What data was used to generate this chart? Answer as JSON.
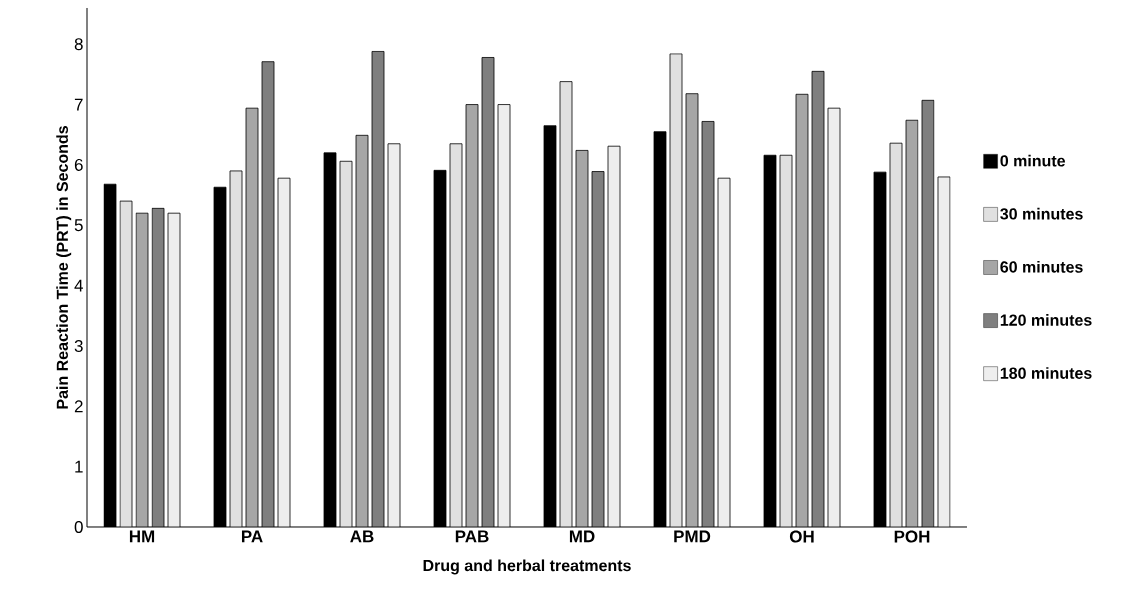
{
  "chart_data": {
    "type": "bar",
    "xlabel": "Drug and herbal treatments",
    "ylabel": "Pain Reaction Time (PRT) in Seconds",
    "categories": [
      "HM",
      "PA",
      "AB",
      "PAB",
      "MD",
      "PMD",
      "OH",
      "POH"
    ],
    "series": [
      {
        "name": "0 minute",
        "color": "#000000",
        "values": [
          5.68,
          5.63,
          6.2,
          5.91,
          6.65,
          6.55,
          6.16,
          5.88
        ]
      },
      {
        "name": "30 minutes",
        "color": "#e0e0e0",
        "values": [
          5.4,
          5.9,
          6.06,
          6.35,
          7.38,
          7.84,
          6.16,
          6.36
        ]
      },
      {
        "name": "60 minutes",
        "color": "#a6a6a6",
        "values": [
          5.2,
          6.94,
          6.49,
          7.0,
          6.24,
          7.18,
          7.17,
          6.74
        ]
      },
      {
        "name": "120 minutes",
        "color": "#7f7f7f",
        "values": [
          5.28,
          7.71,
          7.88,
          7.78,
          5.89,
          6.72,
          7.55,
          7.07
        ]
      },
      {
        "name": "180 minutes",
        "color": "#eeeeee",
        "values": [
          5.2,
          5.78,
          6.35,
          7.0,
          6.31,
          5.78,
          6.94,
          5.8
        ]
      }
    ],
    "ylim": [
      0,
      8.6
    ],
    "yticks": [
      0,
      1,
      2,
      3,
      4,
      5,
      6,
      7,
      8
    ],
    "grid": false,
    "legend": "right"
  }
}
